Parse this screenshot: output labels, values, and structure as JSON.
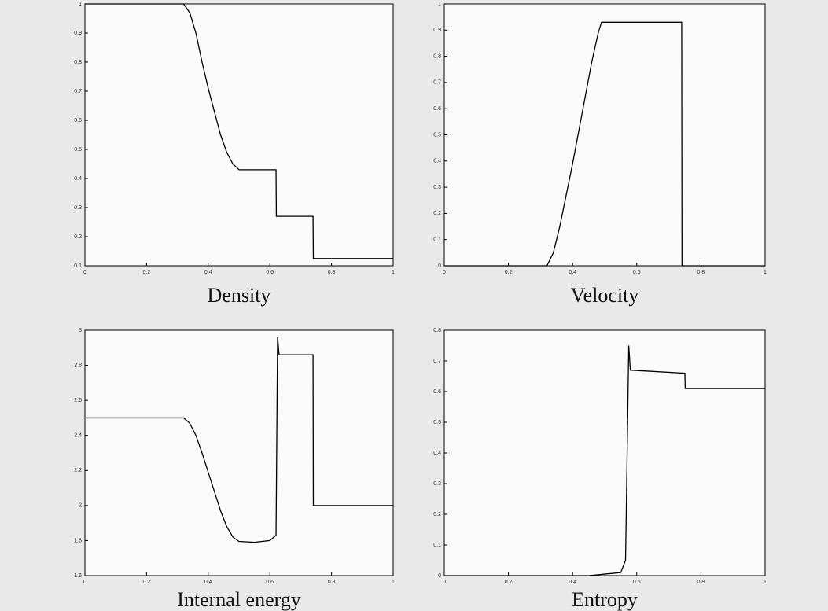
{
  "chart_data": [
    {
      "type": "line",
      "title": "Density",
      "color": "#000000",
      "xlim": [
        0,
        1
      ],
      "ylim": [
        0.1,
        1
      ],
      "xticks": [
        0,
        0.2,
        0.4,
        0.6,
        0.8,
        1
      ],
      "yticks": [
        0.1,
        0.2,
        0.3,
        0.4,
        0.5,
        0.6,
        0.7,
        0.8,
        0.9,
        1
      ],
      "x": [
        0,
        0.32,
        0.34,
        0.36,
        0.38,
        0.4,
        0.42,
        0.44,
        0.46,
        0.48,
        0.5,
        0.62,
        0.621,
        0.74,
        0.741,
        1
      ],
      "values": [
        1,
        1,
        0.97,
        0.9,
        0.8,
        0.71,
        0.63,
        0.55,
        0.49,
        0.45,
        0.43,
        0.43,
        0.27,
        0.27,
        0.125,
        0.125
      ]
    },
    {
      "type": "line",
      "title": "Velocity",
      "color": "#000000",
      "xlim": [
        0,
        1
      ],
      "ylim": [
        0,
        1
      ],
      "xticks": [
        0,
        0.2,
        0.4,
        0.6,
        0.8,
        1
      ],
      "yticks": [
        0,
        0.1,
        0.2,
        0.3,
        0.4,
        0.5,
        0.6,
        0.7,
        0.8,
        0.9,
        1
      ],
      "x": [
        0,
        0.32,
        0.34,
        0.36,
        0.38,
        0.4,
        0.42,
        0.44,
        0.46,
        0.48,
        0.49,
        0.74,
        0.741,
        1
      ],
      "values": [
        0,
        0,
        0.05,
        0.15,
        0.27,
        0.39,
        0.52,
        0.65,
        0.78,
        0.89,
        0.93,
        0.93,
        0,
        0
      ]
    },
    {
      "type": "line",
      "title": "Internal energy",
      "color": "#000000",
      "xlim": [
        0,
        1
      ],
      "ylim": [
        1.6,
        3
      ],
      "xticks": [
        0,
        0.2,
        0.4,
        0.6,
        0.8,
        1
      ],
      "yticks": [
        1.6,
        1.8,
        2,
        2.2,
        2.4,
        2.6,
        2.8,
        3
      ],
      "x": [
        0,
        0.32,
        0.34,
        0.36,
        0.38,
        0.4,
        0.42,
        0.44,
        0.46,
        0.48,
        0.5,
        0.55,
        0.6,
        0.62,
        0.625,
        0.63,
        0.74,
        0.741,
        1
      ],
      "values": [
        2.5,
        2.5,
        2.47,
        2.4,
        2.3,
        2.19,
        2.08,
        1.97,
        1.88,
        1.82,
        1.795,
        1.79,
        1.8,
        1.83,
        2.96,
        2.86,
        2.86,
        2,
        2
      ]
    },
    {
      "type": "line",
      "title": "Entropy",
      "color": "#000000",
      "xlim": [
        0,
        1
      ],
      "ylim": [
        0,
        0.8
      ],
      "xticks": [
        0,
        0.2,
        0.4,
        0.6,
        0.8,
        1
      ],
      "yticks": [
        0,
        0.1,
        0.2,
        0.3,
        0.4,
        0.5,
        0.6,
        0.7,
        0.8
      ],
      "x": [
        0,
        0.45,
        0.5,
        0.55,
        0.565,
        0.575,
        0.58,
        0.75,
        0.751,
        1
      ],
      "values": [
        0,
        0,
        0.005,
        0.01,
        0.05,
        0.75,
        0.67,
        0.66,
        0.61,
        0.61
      ]
    }
  ]
}
